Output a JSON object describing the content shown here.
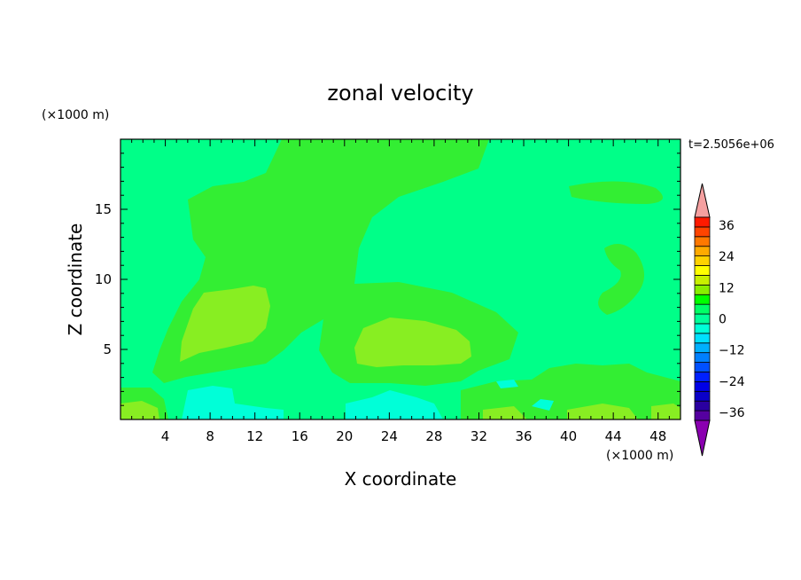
{
  "chart_data": {
    "type": "heatmap",
    "title": "zonal velocity",
    "xlabel": "X coordinate",
    "ylabel": "Z coordinate",
    "x_unit": "(×1000 m)",
    "z_unit": "(×1000 m)",
    "time_label": "t=2.5056e+06",
    "xlim": [
      0,
      50
    ],
    "ylim": [
      0,
      20
    ],
    "x_ticks": [
      4,
      8,
      12,
      16,
      20,
      24,
      28,
      32,
      36,
      40,
      44,
      48
    ],
    "y_ticks": [
      5,
      10,
      15
    ],
    "colorbar": {
      "levels": [
        -42,
        -39,
        -36,
        -33,
        -30,
        -27,
        -24,
        -21,
        -18,
        -15,
        -12,
        -9,
        -6,
        -3,
        0,
        3,
        6,
        9,
        12,
        15,
        18,
        21,
        24,
        27,
        30,
        33,
        36,
        39,
        42
      ],
      "colors": [
        "#8a00b0",
        "#5500a0",
        "#2a00a0",
        "#0a00c8",
        "#0000e6",
        "#0020ff",
        "#0050ff",
        "#0080ff",
        "#00b0ff",
        "#00e0ff",
        "#00ffd8",
        "#00ff99",
        "#00ff66",
        "#00ff00",
        "#88ee00",
        "#c8f000",
        "#ffff00",
        "#ffd200",
        "#ffaa00",
        "#ff7800",
        "#ff4400",
        "#ff1a00",
        "#f5a0a0"
      ],
      "tick_labels": [
        "36",
        "24",
        "12",
        "0",
        "-12",
        "-24",
        "-36"
      ],
      "extend": "both"
    },
    "field_colors": {
      "background": "#00ff88",
      "weak_positive": "#33ee33",
      "positive": "#88ee22",
      "negative": "#00ffd8"
    }
  }
}
